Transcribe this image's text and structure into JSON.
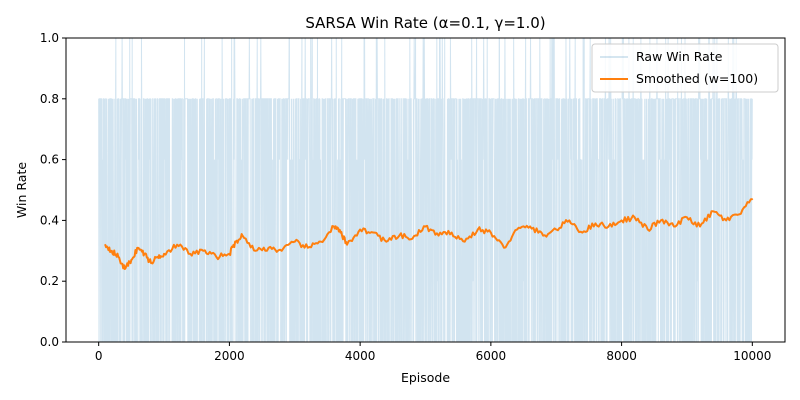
{
  "chart_data": {
    "type": "line",
    "title": "SARSA Win Rate (α=0.1, γ=1.0)",
    "xlabel": "Episode",
    "ylabel": "Win Rate",
    "xlim": [
      -500,
      10500
    ],
    "ylim": [
      0.0,
      1.0
    ],
    "grid": false,
    "legend_position": "top-right",
    "x_ticks": [
      0,
      2000,
      4000,
      6000,
      8000,
      10000
    ],
    "x_tick_labels": [
      "0",
      "2000",
      "4000",
      "6000",
      "8000",
      "10000"
    ],
    "y_ticks": [
      0.0,
      0.2,
      0.4,
      0.6,
      0.8,
      1.0
    ],
    "y_tick_labels": [
      "0.0",
      "0.2",
      "0.4",
      "0.6",
      "0.8",
      "1.0"
    ],
    "series": [
      {
        "name": "Raw Win Rate",
        "color": "#1f77b4",
        "opacity": 0.2,
        "x_range": [
          0,
          10000
        ],
        "values_possible": [
          0.0,
          0.2,
          0.4,
          0.6,
          0.8,
          1.0
        ]
      },
      {
        "name": "Smoothed (w=100)",
        "color": "#ff7f0e",
        "x": [
          100,
          200,
          300,
          400,
          500,
          600,
          700,
          800,
          900,
          1000,
          1200,
          1400,
          1600,
          1800,
          2000,
          2100,
          2200,
          2400,
          2600,
          2800,
          3000,
          3200,
          3400,
          3600,
          3700,
          3800,
          4000,
          4200,
          4400,
          4600,
          4800,
          5000,
          5200,
          5400,
          5600,
          5800,
          6000,
          6200,
          6400,
          6600,
          6800,
          7000,
          7200,
          7400,
          7600,
          7800,
          8000,
          8200,
          8400,
          8600,
          8800,
          9000,
          9200,
          9400,
          9600,
          9800,
          10000
        ],
        "values": [
          0.32,
          0.3,
          0.28,
          0.24,
          0.27,
          0.31,
          0.29,
          0.26,
          0.28,
          0.29,
          0.32,
          0.29,
          0.3,
          0.28,
          0.29,
          0.33,
          0.35,
          0.3,
          0.31,
          0.3,
          0.33,
          0.31,
          0.33,
          0.38,
          0.36,
          0.32,
          0.37,
          0.36,
          0.33,
          0.35,
          0.34,
          0.38,
          0.35,
          0.36,
          0.33,
          0.37,
          0.36,
          0.31,
          0.37,
          0.38,
          0.35,
          0.37,
          0.4,
          0.36,
          0.39,
          0.38,
          0.4,
          0.41,
          0.37,
          0.4,
          0.38,
          0.41,
          0.38,
          0.43,
          0.4,
          0.42,
          0.47
        ]
      }
    ]
  }
}
